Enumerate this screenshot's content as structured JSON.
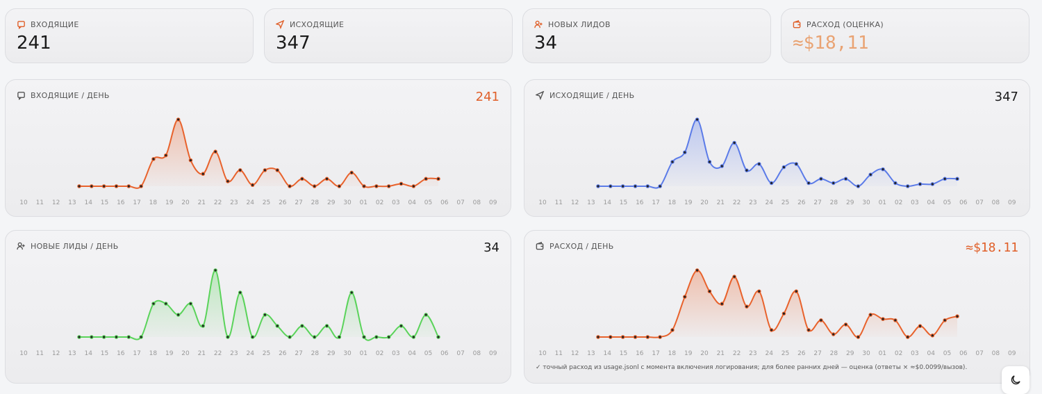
{
  "stats": [
    {
      "label": "ВХОДЯЩИЕ",
      "value": "241",
      "value_color": "#1a1a1a"
    },
    {
      "label": "ИСХОДЯЩИЕ",
      "value": "347",
      "value_color": "#1a1a1a"
    },
    {
      "label": "НОВЫХ ЛИДОВ",
      "value": "34",
      "value_color": "#1a1a1a"
    },
    {
      "label": "РАСХОД (ОЦЕНКА)",
      "value": "≈$18,11",
      "value_color": "#e9a373"
    }
  ],
  "charts": [
    {
      "type": "line",
      "title": "ВХОДЯЩИЕ / ДЕНЬ",
      "total": "241",
      "total_color": "#e0602a",
      "color": "#e8622c",
      "categories": [
        "10",
        "11",
        "12",
        "13",
        "14",
        "15",
        "16",
        "17",
        "18",
        "19",
        "20",
        "21",
        "22",
        "23",
        "24",
        "25",
        "26",
        "27",
        "28",
        "29",
        "30",
        "01",
        "02",
        "03",
        "04",
        "05",
        "06",
        "07",
        "08",
        "09"
      ],
      "values": [
        0,
        0,
        0,
        0,
        0,
        0,
        22,
        25,
        54,
        21,
        10,
        28,
        4,
        13,
        1,
        13,
        13,
        0,
        6,
        0,
        6,
        0,
        11,
        0,
        0,
        0,
        2,
        0,
        6,
        6
      ]
    },
    {
      "type": "line",
      "title": "ИСХОДЯЩИЕ / ДЕНЬ",
      "total": "347",
      "total_color": "#1a1a1a",
      "color": "#5b7be8",
      "categories": [
        "10",
        "11",
        "12",
        "13",
        "14",
        "15",
        "16",
        "17",
        "18",
        "19",
        "20",
        "21",
        "22",
        "23",
        "24",
        "25",
        "26",
        "27",
        "28",
        "29",
        "30",
        "01",
        "02",
        "03",
        "04",
        "05",
        "06",
        "07",
        "08",
        "09"
      ],
      "values": [
        0,
        0,
        0,
        0,
        0,
        0,
        23,
        32,
        63,
        23,
        19,
        41,
        15,
        21,
        3,
        18,
        21,
        3,
        7,
        3,
        7,
        0,
        11,
        16,
        3,
        0,
        2,
        2,
        7,
        7
      ]
    },
    {
      "type": "line",
      "title": "НОВЫЕ ЛИДЫ / ДЕНЬ",
      "total": "34",
      "total_color": "#1a1a1a",
      "color": "#5ad35a",
      "categories": [
        "10",
        "11",
        "12",
        "13",
        "14",
        "15",
        "16",
        "17",
        "18",
        "19",
        "20",
        "21",
        "22",
        "23",
        "24",
        "25",
        "26",
        "27",
        "28",
        "29",
        "30",
        "01",
        "02",
        "03",
        "04",
        "05",
        "06",
        "07",
        "08",
        "09"
      ],
      "values": [
        0,
        0,
        0,
        0,
        0,
        0,
        3,
        3,
        2,
        3,
        1,
        6,
        0,
        4,
        0,
        2,
        1,
        0,
        1,
        0,
        1,
        0,
        4,
        0,
        0,
        0,
        1,
        0,
        2,
        0
      ]
    },
    {
      "type": "line",
      "title": "РАСХОД / ДЕНЬ",
      "total": "≈$18.11",
      "total_color": "#e0602a",
      "color": "#e8622c",
      "categories": [
        "10",
        "11",
        "12",
        "13",
        "14",
        "15",
        "16",
        "17",
        "18",
        "19",
        "20",
        "21",
        "22",
        "23",
        "24",
        "25",
        "26",
        "27",
        "28",
        "29",
        "30",
        "01",
        "02",
        "03",
        "04",
        "05",
        "06",
        "07",
        "08",
        "09"
      ],
      "values": [
        0,
        0,
        0,
        0,
        0,
        0,
        0.23,
        1.32,
        2.19,
        1.5,
        1.09,
        1.98,
        1.0,
        1.5,
        0.23,
        0.77,
        1.5,
        0.23,
        0.55,
        0.09,
        0.41,
        0,
        0.73,
        0.59,
        0.55,
        0,
        0.36,
        0.05,
        0.55,
        0.68
      ],
      "footnote": "✓ точный расход из usage.jsonl с момента включения логирования; для более ранних дней — оценка (ответы × ≈$0.0099/вызов)."
    }
  ]
}
